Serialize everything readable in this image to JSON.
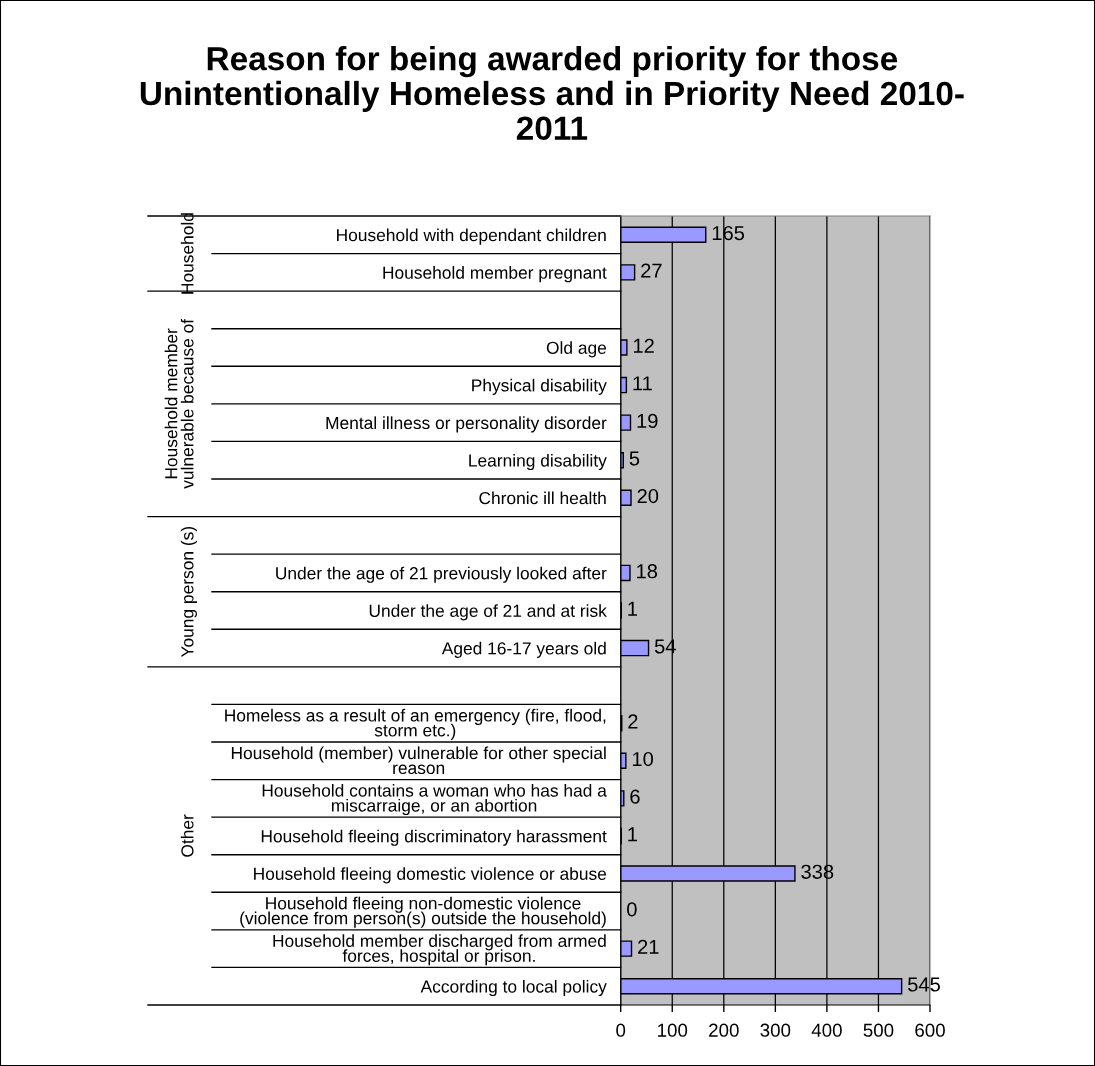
{
  "chart_data": {
    "type": "bar",
    "orientation": "horizontal",
    "title": "Reason for being awarded priority for those\nUnintentionally Homeless and in Priority Need 2010-\n2011",
    "categories": [
      "Household with dependant children",
      "Household member pregnant",
      null,
      "Old age",
      "Physical disability",
      "Mental illness or personality disorder",
      "Learning disability",
      "Chronic ill health",
      null,
      "Under the age of 21 previously looked after",
      "Under the age of 21 and at risk",
      "Aged 16-17 years old",
      null,
      "Homeless as a result of an emergency (fire, flood,\nstorm etc.)",
      "Household (member) vulnerable for other special\nreason",
      "Household contains a woman who has had a\nmiscarraige, or an abortion",
      "Household fleeing discriminatory harassment",
      "Household fleeing domestic violence or abuse",
      "Household fleeing non-domestic violence\n(violence from person(s) outside the household)",
      "Household member discharged from armed\nforces, hospital or prison.",
      "According to local policy"
    ],
    "values": [
      165,
      27,
      null,
      12,
      11,
      19,
      5,
      20,
      null,
      18,
      1,
      54,
      null,
      2,
      10,
      6,
      1,
      338,
      0,
      21,
      545
    ],
    "color": "#9999ff",
    "xlim": [
      0,
      600
    ],
    "xticks": [
      0,
      100,
      200,
      300,
      400,
      500,
      600
    ],
    "grid": "x",
    "data_labels": true,
    "annotations": [
      "Household",
      "Household member\nvulnerable because of",
      "Young person (s)",
      "Other"
    ]
  }
}
